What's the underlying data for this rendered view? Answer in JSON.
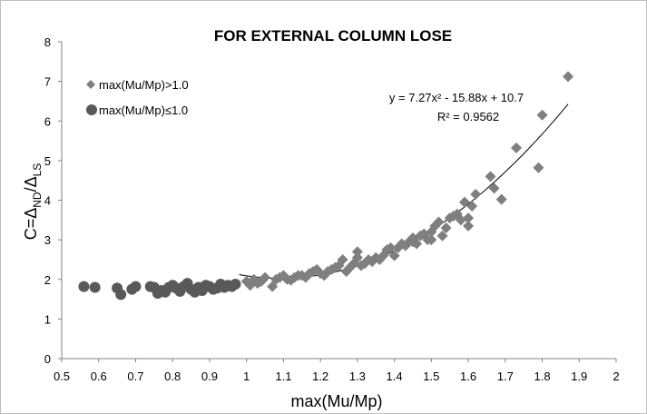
{
  "chart_data": {
    "type": "scatter",
    "title": "FOR EXTERNAL COLUMN LOSE",
    "xlabel": "max(Mu/Mp)",
    "ylabel_parts": {
      "prefix": "C=Δ",
      "sub1": "ND",
      "mid": "/Δ",
      "sub2": "LS"
    },
    "xlim": [
      0.5,
      2
    ],
    "ylim": [
      0,
      8
    ],
    "xticks": [
      "0.5",
      "0.6",
      "0.7",
      "0.8",
      "0.9",
      "1",
      "1.1",
      "1.2",
      "1.3",
      "1.4",
      "1.5",
      "1.6",
      "1.7",
      "1.8",
      "1.9",
      "2"
    ],
    "yticks": [
      "0",
      "1",
      "2",
      "3",
      "4",
      "5",
      "6",
      "7",
      "8"
    ],
    "grid": false,
    "legend_position": "top-left",
    "series": [
      {
        "name": "max(Mu/Mp)>1.0",
        "marker": "diamond",
        "color": "#7f7f7f",
        "points": [
          [
            1.0,
            1.95
          ],
          [
            1.01,
            1.85
          ],
          [
            1.02,
            2.0
          ],
          [
            1.03,
            1.9
          ],
          [
            1.04,
            1.95
          ],
          [
            1.05,
            2.05
          ],
          [
            1.07,
            1.82
          ],
          [
            1.08,
            2.0
          ],
          [
            1.09,
            2.05
          ],
          [
            1.1,
            2.1
          ],
          [
            1.11,
            2.0
          ],
          [
            1.12,
            1.98
          ],
          [
            1.13,
            2.05
          ],
          [
            1.14,
            2.1
          ],
          [
            1.15,
            2.1
          ],
          [
            1.16,
            2.05
          ],
          [
            1.17,
            2.15
          ],
          [
            1.18,
            2.2
          ],
          [
            1.19,
            2.25
          ],
          [
            1.2,
            2.15
          ],
          [
            1.21,
            2.1
          ],
          [
            1.22,
            2.2
          ],
          [
            1.23,
            2.25
          ],
          [
            1.24,
            2.3
          ],
          [
            1.25,
            2.35
          ],
          [
            1.26,
            2.5
          ],
          [
            1.27,
            2.2
          ],
          [
            1.28,
            2.3
          ],
          [
            1.29,
            2.4
          ],
          [
            1.3,
            2.7
          ],
          [
            1.3,
            2.55
          ],
          [
            1.31,
            2.35
          ],
          [
            1.32,
            2.4
          ],
          [
            1.33,
            2.5
          ],
          [
            1.34,
            2.45
          ],
          [
            1.35,
            2.55
          ],
          [
            1.36,
            2.5
          ],
          [
            1.37,
            2.6
          ],
          [
            1.38,
            2.75
          ],
          [
            1.39,
            2.8
          ],
          [
            1.4,
            2.6
          ],
          [
            1.41,
            2.8
          ],
          [
            1.42,
            2.9
          ],
          [
            1.43,
            2.85
          ],
          [
            1.44,
            2.95
          ],
          [
            1.45,
            3.05
          ],
          [
            1.45,
            2.95
          ],
          [
            1.46,
            2.9
          ],
          [
            1.47,
            3.1
          ],
          [
            1.48,
            3.15
          ],
          [
            1.49,
            3.0
          ],
          [
            1.5,
            3.0
          ],
          [
            1.5,
            3.2
          ],
          [
            1.51,
            3.35
          ],
          [
            1.52,
            3.45
          ],
          [
            1.53,
            3.1
          ],
          [
            1.54,
            3.3
          ],
          [
            1.55,
            3.55
          ],
          [
            1.56,
            3.6
          ],
          [
            1.57,
            3.65
          ],
          [
            1.58,
            3.5
          ],
          [
            1.59,
            3.95
          ],
          [
            1.6,
            3.35
          ],
          [
            1.6,
            3.55
          ],
          [
            1.61,
            3.85
          ],
          [
            1.62,
            4.15
          ],
          [
            1.66,
            4.6
          ],
          [
            1.67,
            4.3
          ],
          [
            1.69,
            4.02
          ],
          [
            1.73,
            5.32
          ],
          [
            1.79,
            4.82
          ],
          [
            1.8,
            6.15
          ],
          [
            1.87,
            7.12
          ]
        ]
      },
      {
        "name": "max(Mu/Mp)≤1.0",
        "marker": "circle",
        "color": "#595959",
        "points": [
          [
            0.56,
            1.82
          ],
          [
            0.59,
            1.8
          ],
          [
            0.65,
            1.78
          ],
          [
            0.66,
            1.62
          ],
          [
            0.69,
            1.75
          ],
          [
            0.7,
            1.82
          ],
          [
            0.74,
            1.82
          ],
          [
            0.75,
            1.8
          ],
          [
            0.76,
            1.65
          ],
          [
            0.77,
            1.72
          ],
          [
            0.78,
            1.68
          ],
          [
            0.79,
            1.8
          ],
          [
            0.8,
            1.85
          ],
          [
            0.81,
            1.78
          ],
          [
            0.82,
            1.7
          ],
          [
            0.83,
            1.82
          ],
          [
            0.84,
            1.9
          ],
          [
            0.85,
            1.75
          ],
          [
            0.86,
            1.68
          ],
          [
            0.87,
            1.8
          ],
          [
            0.88,
            1.72
          ],
          [
            0.89,
            1.85
          ],
          [
            0.9,
            1.82
          ],
          [
            0.91,
            1.75
          ],
          [
            0.92,
            1.78
          ],
          [
            0.93,
            1.88
          ],
          [
            0.94,
            1.8
          ],
          [
            0.95,
            1.85
          ],
          [
            0.96,
            1.82
          ],
          [
            0.97,
            1.88
          ]
        ]
      }
    ],
    "trendline": {
      "equation": "y = 7.27x² - 15.88x + 10.7",
      "r_squared": "R² = 0.9562",
      "coefficients": [
        7.27,
        -15.88,
        10.7
      ],
      "x_range": [
        0.98,
        1.87
      ]
    }
  }
}
